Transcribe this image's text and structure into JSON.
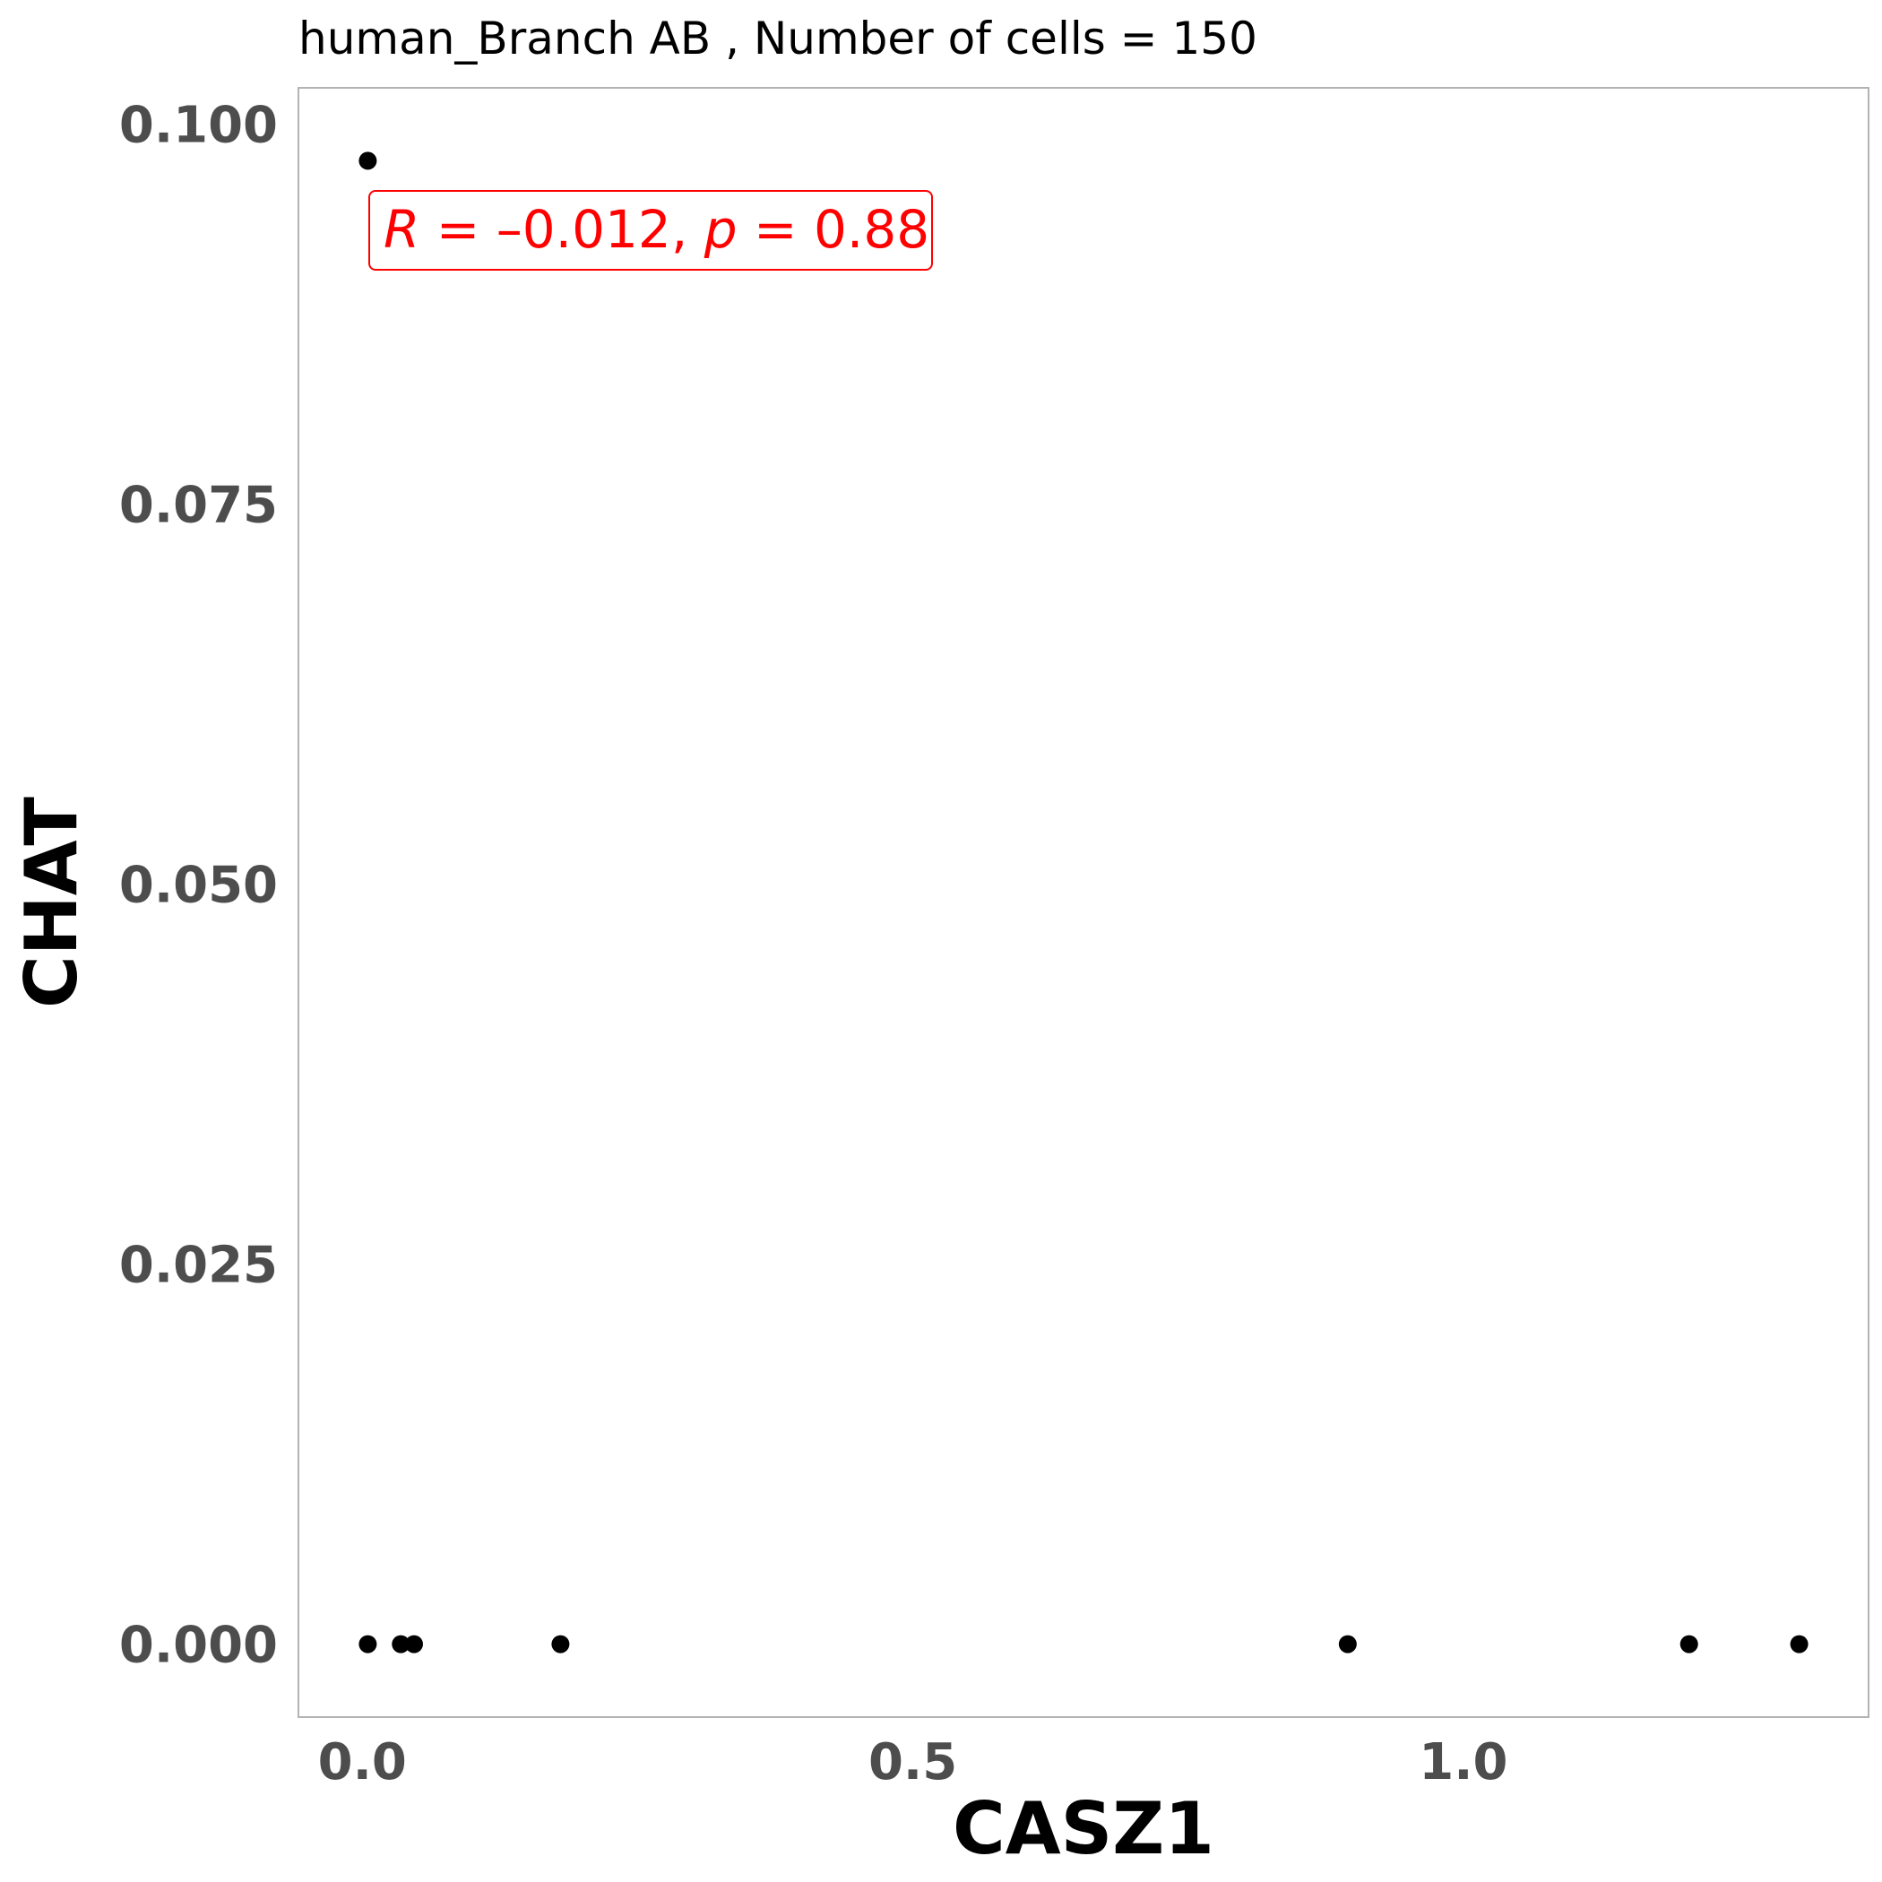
{
  "chart_data": {
    "type": "scatter",
    "title": "human_Branch AB , Number of cells =  150",
    "xlabel": "CASZ1",
    "ylabel": "CHAT",
    "xlim": [
      -0.058,
      1.368
    ],
    "ylim": [
      -0.0048,
      0.1024
    ],
    "x_ticks": [
      {
        "value": 0.0,
        "label": "0.0"
      },
      {
        "value": 0.5,
        "label": "0.5"
      },
      {
        "value": 1.0,
        "label": "1.0"
      }
    ],
    "y_ticks": [
      {
        "value": 0.0,
        "label": "0.000"
      },
      {
        "value": 0.025,
        "label": "0.025"
      },
      {
        "value": 0.05,
        "label": "0.050"
      },
      {
        "value": 0.075,
        "label": "0.075"
      },
      {
        "value": 0.1,
        "label": "0.100"
      }
    ],
    "grid": false,
    "points": [
      {
        "x": 0.005,
        "y": 0.0976
      },
      {
        "x": 0.005,
        "y": 0.0
      },
      {
        "x": 0.035,
        "y": 0.0
      },
      {
        "x": 0.047,
        "y": 0.0
      },
      {
        "x": 0.18,
        "y": 0.0
      },
      {
        "x": 0.895,
        "y": 0.0
      },
      {
        "x": 1.205,
        "y": 0.0
      },
      {
        "x": 1.305,
        "y": 0.0
      }
    ],
    "point_color": "#000000",
    "annotation": {
      "text_parts": [
        {
          "text": "R",
          "italic": true
        },
        {
          "text": " = –0.012, ",
          "italic": false
        },
        {
          "text": "p",
          "italic": true
        },
        {
          "text": " = 0.88",
          "italic": false
        }
      ],
      "color": "#ff0000"
    }
  }
}
